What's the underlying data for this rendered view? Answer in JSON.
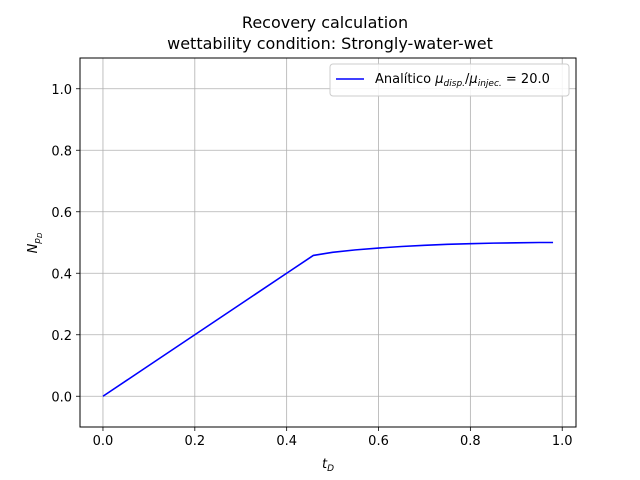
{
  "chart_data": {
    "type": "line",
    "title": "Recovery calculation",
    "subtitle": "wettability condition: Strongly-water-wet",
    "xlabel": "t",
    "xlabel_sub": "D",
    "ylabel": "N",
    "ylabel_sub": "p",
    "ylabel_subsub": "D",
    "xlim": [
      -0.05,
      1.03
    ],
    "ylim": [
      -0.1,
      1.1
    ],
    "xticks": [
      0.0,
      0.2,
      0.4,
      0.6,
      0.8,
      1.0
    ],
    "xtick_labels": [
      "0.0",
      "0.2",
      "0.4",
      "0.6",
      "0.8",
      "1.0"
    ],
    "yticks": [
      0.0,
      0.2,
      0.4,
      0.6,
      0.8,
      1.0
    ],
    "ytick_labels": [
      "0.0",
      "0.2",
      "0.4",
      "0.6",
      "0.8",
      "1.0"
    ],
    "grid": true,
    "legend_position": "top-right",
    "legend": {
      "prefix": "Analítico ",
      "mu": "μ",
      "sub1": "disp.",
      "slash": "/",
      "sub2": "injec.",
      "suffix": " = 20.0"
    },
    "series": [
      {
        "color": "#0000ff",
        "x": [
          0.0,
          0.1,
          0.2,
          0.3,
          0.4,
          0.458,
          0.5,
          0.55,
          0.6,
          0.65,
          0.7,
          0.75,
          0.8,
          0.85,
          0.9,
          0.95,
          0.98
        ],
        "y": [
          0.0,
          0.1,
          0.2,
          0.3,
          0.4,
          0.458,
          0.468,
          0.476,
          0.482,
          0.487,
          0.491,
          0.494,
          0.496,
          0.498,
          0.499,
          0.5,
          0.5
        ]
      }
    ]
  }
}
